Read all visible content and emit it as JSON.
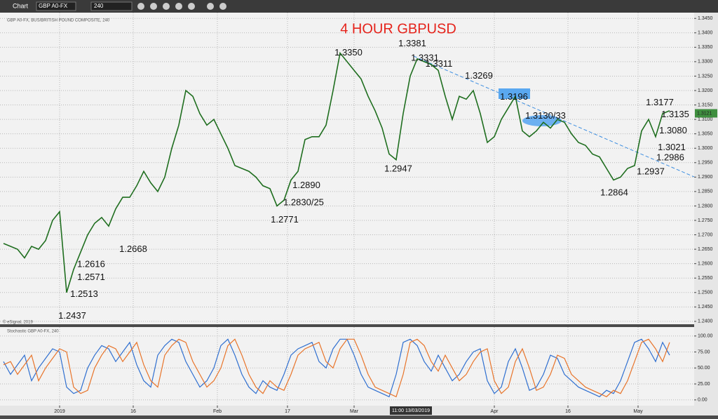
{
  "ui": {
    "toolbar": {
      "chart_label": "Chart",
      "symbol": "GBP A0-FX",
      "interval": "240"
    },
    "info_line": "GBP A0-FX, BUS/BRITISH POUND COMPOSITE, 240",
    "copyright": "© eSignal, 2019",
    "osc_info": "Stochastic GBP A0-FX, 240",
    "cursor_date": "11:00 13/03/2019"
  },
  "chart_data": [
    {
      "type": "line",
      "title": "4 HOUR GBPUSD",
      "x": [
        0,
        1,
        2,
        3,
        4,
        5,
        6,
        7,
        8,
        9,
        10,
        11,
        12,
        13,
        14,
        15,
        16,
        17,
        18,
        19,
        20,
        21,
        22,
        23,
        24,
        25,
        26,
        27,
        28,
        29,
        30,
        31,
        32,
        33,
        34,
        35,
        36,
        37,
        38,
        39,
        40,
        41,
        42,
        43,
        44,
        45,
        46,
        47,
        48,
        49,
        50,
        51,
        52,
        53,
        54,
        55,
        56,
        57,
        58,
        59,
        60,
        61,
        62,
        63,
        64,
        65,
        66,
        67,
        68,
        69,
        70,
        71,
        72,
        73,
        74,
        75,
        76,
        77,
        78,
        79,
        80,
        81,
        82,
        83,
        84,
        85,
        86,
        87,
        88,
        89,
        90,
        91,
        92,
        93,
        94,
        95
      ],
      "series": [
        {
          "color": "#1f6e1f",
          "values": [
            1.267,
            1.266,
            1.265,
            1.262,
            1.266,
            1.265,
            1.268,
            1.275,
            1.278,
            1.25,
            1.258,
            1.264,
            1.27,
            1.274,
            1.276,
            1.273,
            1.279,
            1.283,
            1.283,
            1.287,
            1.292,
            1.288,
            1.285,
            1.29,
            1.3,
            1.308,
            1.32,
            1.318,
            1.312,
            1.308,
            1.31,
            1.305,
            1.3,
            1.294,
            1.293,
            1.292,
            1.29,
            1.287,
            1.286,
            1.28,
            1.282,
            1.289,
            1.292,
            1.303,
            1.304,
            1.304,
            1.308,
            1.32,
            1.333,
            1.33,
            1.327,
            1.324,
            1.318,
            1.313,
            1.307,
            1.298,
            1.296,
            1.312,
            1.325,
            1.331,
            1.33,
            1.329,
            1.327,
            1.318,
            1.31,
            1.318,
            1.317,
            1.32,
            1.312,
            1.302,
            1.304,
            1.31,
            1.314,
            1.318,
            1.306,
            1.304,
            1.306,
            1.309,
            1.307,
            1.31,
            1.309,
            1.305,
            1.302,
            1.301,
            1.298,
            1.297,
            1.293,
            1.289,
            1.29,
            1.293,
            1.294,
            1.306,
            1.31,
            1.304,
            1.312,
            1.313
          ]
        }
      ],
      "xlim": [
        -0.5,
        98.5
      ],
      "xticks": [
        {
          "value": 8,
          "label": "2019"
        },
        {
          "value": 18.5,
          "label": "16"
        },
        {
          "value": 30.5,
          "label": "Feb"
        },
        {
          "value": 40.5,
          "label": "17"
        },
        {
          "value": 50,
          "label": "Mar"
        },
        {
          "value": 70,
          "label": "Apr"
        },
        {
          "value": 80.5,
          "label": "16"
        },
        {
          "value": 90.5,
          "label": "May"
        }
      ],
      "ylim": [
        1.239,
        1.347
      ],
      "yticks": [
        {
          "value": 1.24,
          "label": "1.2400"
        },
        {
          "value": 1.245,
          "label": "1.2450"
        },
        {
          "value": 1.25,
          "label": "1.2500"
        },
        {
          "value": 1.255,
          "label": "1.2550"
        },
        {
          "value": 1.26,
          "label": "1.2600"
        },
        {
          "value": 1.265,
          "label": "1.2650"
        },
        {
          "value": 1.27,
          "label": "1.2700"
        },
        {
          "value": 1.275,
          "label": "1.2750"
        },
        {
          "value": 1.28,
          "label": "1.2800"
        },
        {
          "value": 1.285,
          "label": "1.2850"
        },
        {
          "value": 1.29,
          "label": "1.2900"
        },
        {
          "value": 1.295,
          "label": "1.2950"
        },
        {
          "value": 1.3,
          "label": "1.3000"
        },
        {
          "value": 1.305,
          "label": "1.3050"
        },
        {
          "value": 1.31,
          "label": "1.3100"
        },
        {
          "value": 1.315,
          "label": "1.3150"
        },
        {
          "value": 1.32,
          "label": "1.3200"
        },
        {
          "value": 1.325,
          "label": "1.3250"
        },
        {
          "value": 1.33,
          "label": "1.3300"
        },
        {
          "value": 1.335,
          "label": "1.3350"
        },
        {
          "value": 1.34,
          "label": "1.3400"
        },
        {
          "value": 1.345,
          "label": "1.3450"
        }
      ],
      "grid": true,
      "last_price": 1.3121,
      "annotations": [
        {
          "label": "1.3381",
          "x": 58.3,
          "y": 1.3381
        },
        {
          "label": "1.3331",
          "x": 60.1,
          "y": 1.3331
        },
        {
          "label": "1.3311",
          "x": 62.1,
          "y": 1.3311
        },
        {
          "label": "1.3350",
          "x": 49.2,
          "y": 1.335
        },
        {
          "label": "1.3269",
          "x": 67.8,
          "y": 1.3269
        },
        {
          "label": "1.3196",
          "x": 72.8,
          "y": 1.3196
        },
        {
          "label": "1.3130/33",
          "x": 77.3,
          "y": 1.313
        },
        {
          "label": "1.3177",
          "x": 93.6,
          "y": 1.3177
        },
        {
          "label": "1.3135",
          "x": 95.8,
          "y": 1.3135
        },
        {
          "label": "1.3080",
          "x": 95.5,
          "y": 1.308
        },
        {
          "label": "1.3021",
          "x": 95.3,
          "y": 1.3021
        },
        {
          "label": "1.2986",
          "x": 95.1,
          "y": 1.2986
        },
        {
          "label": "1.2937",
          "x": 92.3,
          "y": 1.2937
        },
        {
          "label": "1.2864",
          "x": 87.1,
          "y": 1.2864
        },
        {
          "label": "1.2947",
          "x": 56.3,
          "y": 1.2947
        },
        {
          "label": "1.2890",
          "x": 43.2,
          "y": 1.289
        },
        {
          "label": "1.2830/25",
          "x": 42.8,
          "y": 1.283
        },
        {
          "label": "1.2771",
          "x": 40.1,
          "y": 1.2771
        },
        {
          "label": "1.2668",
          "x": 18.5,
          "y": 1.2668
        },
        {
          "label": "1.2616",
          "x": 12.5,
          "y": 1.2616
        },
        {
          "label": "1.2571",
          "x": 12.5,
          "y": 1.2571
        },
        {
          "label": "1.2513",
          "x": 11.5,
          "y": 1.2513
        },
        {
          "label": "1.2437",
          "x": 9.8,
          "y": 1.2437
        }
      ]
    },
    {
      "type": "line",
      "series": [
        {
          "color": "#2f6fd0",
          "values": [
            60,
            40,
            55,
            70,
            30,
            50,
            65,
            80,
            75,
            20,
            10,
            15,
            50,
            70,
            85,
            80,
            60,
            75,
            90,
            55,
            30,
            20,
            70,
            85,
            95,
            90,
            60,
            40,
            20,
            30,
            50,
            85,
            95,
            70,
            40,
            20,
            10,
            30,
            20,
            15,
            40,
            70,
            80,
            85,
            90,
            60,
            50,
            80,
            95,
            95,
            70,
            40,
            20,
            15,
            10,
            5,
            40,
            90,
            95,
            85,
            60,
            45,
            70,
            50,
            30,
            40,
            60,
            75,
            80,
            30,
            10,
            20,
            60,
            80,
            50,
            15,
            20,
            40,
            70,
            65,
            40,
            30,
            20,
            15,
            10,
            5,
            15,
            10,
            30,
            60,
            90,
            95,
            80,
            60,
            90,
            70
          ]
        },
        {
          "color": "#e8742a",
          "values": [
            55,
            60,
            40,
            55,
            70,
            30,
            50,
            65,
            80,
            75,
            20,
            10,
            15,
            50,
            70,
            85,
            80,
            60,
            75,
            90,
            55,
            30,
            20,
            70,
            85,
            95,
            90,
            60,
            40,
            20,
            30,
            50,
            85,
            95,
            70,
            40,
            20,
            10,
            30,
            20,
            15,
            40,
            70,
            80,
            85,
            90,
            60,
            50,
            80,
            95,
            95,
            70,
            40,
            20,
            15,
            10,
            5,
            40,
            90,
            95,
            85,
            60,
            45,
            70,
            50,
            30,
            40,
            60,
            75,
            80,
            30,
            10,
            20,
            60,
            80,
            50,
            15,
            20,
            40,
            70,
            65,
            40,
            30,
            20,
            15,
            10,
            5,
            15,
            10,
            30,
            60,
            90,
            95,
            80,
            60,
            90
          ]
        }
      ],
      "ylim": [
        -9,
        114
      ],
      "yticks": [
        {
          "value": 0,
          "label": "0.00"
        },
        {
          "value": 25,
          "label": "25.00"
        },
        {
          "value": 50,
          "label": "50.00"
        },
        {
          "value": 75,
          "label": "75.00"
        },
        {
          "value": 100,
          "label": "100.00"
        }
      ],
      "grid": true
    }
  ]
}
